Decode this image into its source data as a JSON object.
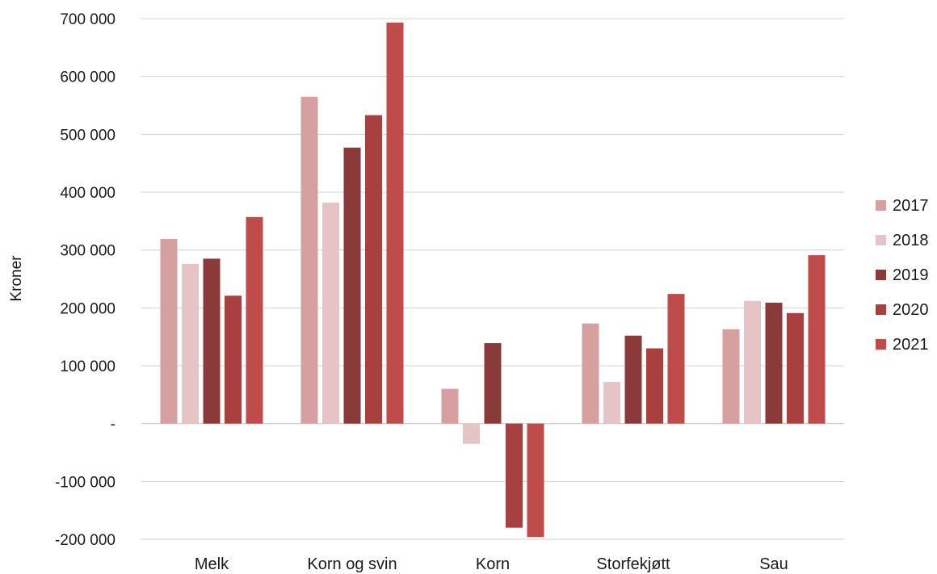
{
  "chart_data": {
    "type": "bar",
    "ylabel": "Kroner",
    "ylim": [
      -200000,
      700000
    ],
    "yticks": [
      {
        "value": 700000,
        "label": "700 000"
      },
      {
        "value": 600000,
        "label": "600 000"
      },
      {
        "value": 500000,
        "label": "500 000"
      },
      {
        "value": 400000,
        "label": "400 000"
      },
      {
        "value": 300000,
        "label": "300 000"
      },
      {
        "value": 200000,
        "label": "200 000"
      },
      {
        "value": 100000,
        "label": "100 000"
      },
      {
        "value": 0,
        "label": "-"
      },
      {
        "value": -100000,
        "label": "-100 000"
      },
      {
        "value": -200000,
        "label": "-200 000"
      }
    ],
    "categories": [
      "Melk",
      "Korn og svin",
      "Korn",
      "Storfekjøtt",
      "Sau"
    ],
    "series": [
      {
        "name": "2017",
        "color": "#d6a0a0",
        "values": [
          319000,
          565000,
          60000,
          173000,
          163000
        ]
      },
      {
        "name": "2018",
        "color": "#e6c3c5",
        "values": [
          276000,
          382000,
          -35000,
          72000,
          212000
        ]
      },
      {
        "name": "2019",
        "color": "#8b3a3a",
        "values": [
          285000,
          477000,
          139000,
          152000,
          209000
        ]
      },
      {
        "name": "2020",
        "color": "#a8403f",
        "values": [
          221000,
          533000,
          -180000,
          130000,
          191000
        ]
      },
      {
        "name": "2021",
        "color": "#bf4b4a",
        "values": [
          357000,
          693000,
          -196000,
          224000,
          291000
        ]
      }
    ],
    "grid": true,
    "legend": "right"
  }
}
